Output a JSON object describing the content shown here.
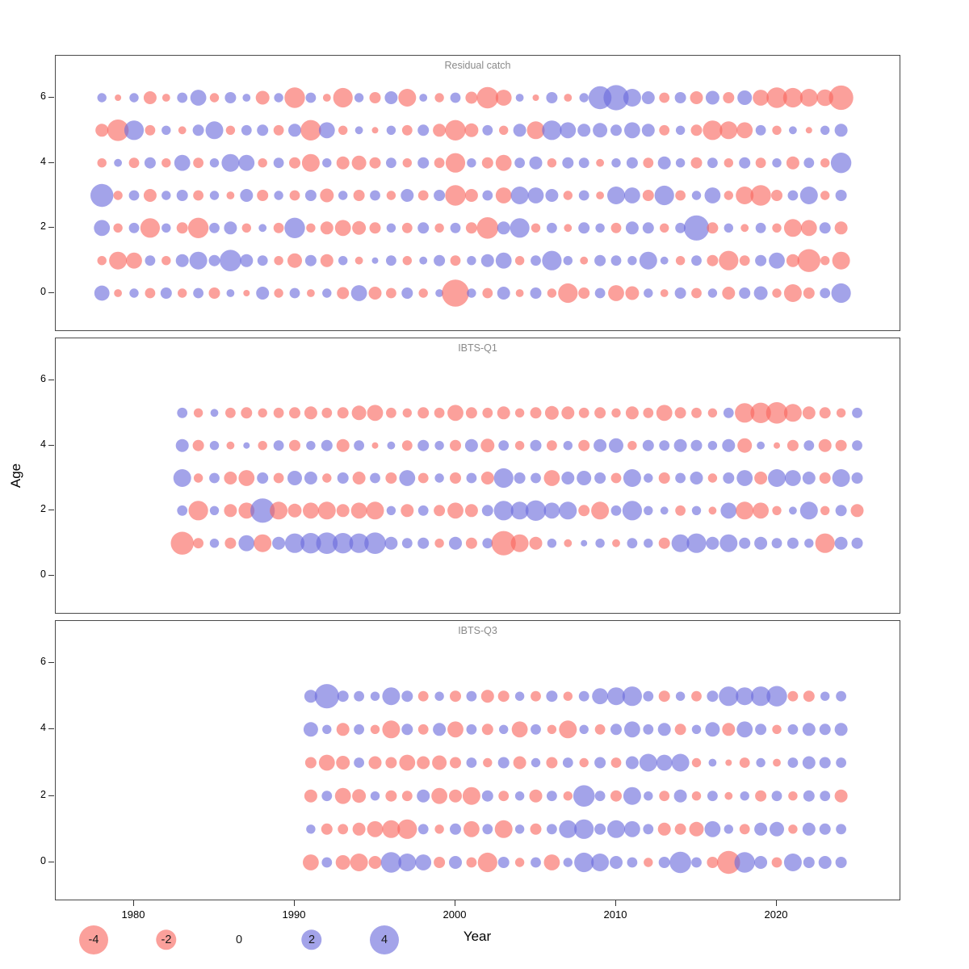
{
  "figure": {
    "ylabel": "Age",
    "xlabel": "Year",
    "x_ticks": [
      1980,
      1990,
      2000,
      2010,
      2020
    ],
    "y_ticks": [
      0,
      2,
      4,
      6
    ],
    "legend": [
      {
        "value": -4,
        "label": "-4"
      },
      {
        "value": -2,
        "label": "-2"
      },
      {
        "value": 0,
        "label": "0"
      },
      {
        "value": 2,
        "label": "2"
      },
      {
        "value": 4,
        "label": "4"
      }
    ],
    "colors": {
      "negative": "#F9655E",
      "positive": "#6A6ADC"
    }
  },
  "chart_data": [
    {
      "type": "bubble",
      "title": "Residual catch",
      "year_start": 1978,
      "year_end": 2024,
      "ages": [
        0,
        1,
        2,
        3,
        4,
        5,
        6
      ],
      "value_note": "sign gives color (negative=red, positive=blue); |value| gives bubble area",
      "series": [
        {
          "age": 0,
          "values": [
            1.1,
            -0.3,
            0.4,
            -0.5,
            0.6,
            -0.4,
            0.5,
            -0.6,
            0.3,
            -0.2,
            0.8,
            -0.4,
            0.5,
            -0.3,
            0.4,
            -0.7,
            1.2,
            -0.8,
            -0.5,
            0.6,
            -0.4,
            0.3,
            -3.5,
            0.4,
            -0.5,
            0.8,
            -0.3,
            0.6,
            -0.4,
            -1.8,
            -0.6,
            0.5,
            -1.2,
            -0.9,
            0.4,
            -0.3,
            0.6,
            -0.5,
            0.4,
            -0.8,
            0.6,
            0.9,
            -0.4,
            -1.5,
            -0.6,
            0.5,
            1.8
          ]
        },
        {
          "age": 1,
          "values": [
            -0.4,
            -1.5,
            -1.2,
            0.5,
            -0.4,
            0.8,
            1.5,
            0.6,
            2.2,
            0.8,
            0.5,
            -0.4,
            -1.0,
            0.6,
            -0.8,
            0.4,
            -0.3,
            0.2,
            0.5,
            -0.4,
            0.3,
            0.6,
            -0.5,
            0.4,
            0.8,
            1.2,
            -0.4,
            0.5,
            1.8,
            0.4,
            -0.3,
            0.6,
            0.5,
            0.4,
            1.5,
            0.3,
            -0.4,
            0.5,
            -0.6,
            -1.8,
            -0.5,
            0.6,
            1.2,
            -0.8,
            -2.5,
            -0.4,
            -1.5
          ]
        },
        {
          "age": 2,
          "values": [
            1.2,
            -0.4,
            0.5,
            -1.8,
            0.4,
            -0.6,
            -2.0,
            0.5,
            0.8,
            -0.4,
            0.3,
            -0.5,
            2.0,
            -0.4,
            -0.8,
            -1.2,
            -0.9,
            -0.6,
            0.4,
            -0.5,
            0.6,
            -0.4,
            0.5,
            -0.6,
            -2.2,
            0.8,
            1.8,
            -0.4,
            0.5,
            -0.3,
            0.6,
            0.4,
            -0.5,
            0.8,
            0.6,
            -0.4,
            0.5,
            3.0,
            -0.6,
            0.4,
            -0.3,
            0.5,
            -0.4,
            -1.5,
            -1.2,
            0.6,
            -0.8
          ]
        },
        {
          "age": 3,
          "values": [
            2.5,
            -0.4,
            0.5,
            -0.8,
            0.4,
            0.6,
            -0.5,
            0.4,
            -0.3,
            0.8,
            -0.6,
            0.4,
            -0.5,
            0.6,
            -0.9,
            0.4,
            -0.6,
            0.5,
            -0.4,
            0.8,
            -0.5,
            0.6,
            -2.0,
            -0.8,
            0.5,
            -1.2,
            1.5,
            1.2,
            0.8,
            -0.4,
            0.5,
            -0.3,
            1.5,
            1.2,
            -0.6,
            1.8,
            -0.5,
            0.4,
            1.2,
            -0.4,
            -1.5,
            -2.0,
            -0.6,
            0.5,
            1.5,
            -0.4,
            0.6
          ]
        },
        {
          "age": 4,
          "values": [
            -0.4,
            0.3,
            -0.5,
            0.6,
            -0.4,
            1.2,
            -0.5,
            0.4,
            1.5,
            1.2,
            -0.4,
            0.5,
            -0.6,
            -1.5,
            0.4,
            -0.8,
            -1.0,
            -0.6,
            0.5,
            -0.4,
            0.6,
            -0.5,
            -1.8,
            0.4,
            -0.6,
            -1.2,
            0.5,
            0.8,
            -0.4,
            0.6,
            0.5,
            -0.3,
            0.4,
            0.6,
            -0.5,
            0.8,
            0.4,
            -0.6,
            0.5,
            -0.4,
            0.6,
            -0.5,
            0.4,
            -0.8,
            0.5,
            -0.4,
            2.0
          ]
        },
        {
          "age": 5,
          "values": [
            -0.8,
            -2.2,
            1.8,
            -0.5,
            0.4,
            -0.3,
            0.6,
            1.5,
            -0.4,
            0.5,
            0.6,
            -0.5,
            0.8,
            -2.0,
            1.2,
            -0.4,
            0.3,
            -0.2,
            0.4,
            -0.5,
            0.6,
            -0.8,
            -2.0,
            -0.9,
            0.5,
            -0.4,
            0.8,
            -1.5,
            1.8,
            1.2,
            0.8,
            1.0,
            0.6,
            1.2,
            0.8,
            -0.5,
            0.4,
            -0.6,
            -1.8,
            -1.5,
            -1.2,
            0.5,
            -0.4,
            0.3,
            -0.2,
            0.4,
            0.8
          ]
        },
        {
          "age": 6,
          "values": [
            0.4,
            -0.2,
            0.4,
            -0.8,
            -0.3,
            0.5,
            1.2,
            -0.4,
            0.6,
            0.3,
            -0.9,
            0.4,
            -2.0,
            0.5,
            -0.3,
            -1.8,
            0.4,
            -0.6,
            0.8,
            -1.5,
            0.3,
            -0.4,
            0.5,
            -0.7,
            -2.2,
            -1.2,
            0.3,
            -0.2,
            0.6,
            -0.3,
            0.4,
            2.5,
            3.0,
            1.5,
            0.8,
            -0.5,
            0.6,
            -0.8,
            0.9,
            -0.6,
            1.0,
            -1.2,
            -2.0,
            -1.8,
            -1.5,
            -1.3,
            -2.8
          ]
        }
      ]
    },
    {
      "type": "bubble",
      "title": "IBTS-Q1",
      "year_start": 1983,
      "year_end": 2025,
      "ages": [
        1,
        2,
        3,
        4,
        5
      ],
      "series": [
        {
          "age": 1,
          "values": [
            -2.5,
            -0.5,
            0.4,
            -0.6,
            1.2,
            -1.5,
            0.8,
            1.8,
            2.0,
            2.2,
            2.0,
            1.8,
            2.2,
            0.8,
            0.5,
            0.6,
            -0.4,
            0.8,
            -0.6,
            0.5,
            -2.8,
            -1.5,
            -0.8,
            0.4,
            -0.3,
            0.2,
            0.4,
            -0.3,
            0.5,
            0.4,
            -0.6,
            1.5,
            1.8,
            0.8,
            1.5,
            0.6,
            0.8,
            0.5,
            0.6,
            0.4,
            -1.8,
            0.8,
            0.6
          ]
        },
        {
          "age": 2,
          "values": [
            0.5,
            -1.8,
            0.4,
            -0.8,
            -1.2,
            2.8,
            -1.5,
            -0.9,
            -1.2,
            -1.5,
            -0.8,
            -1.2,
            -1.5,
            0.4,
            -0.8,
            0.5,
            -0.6,
            -1.2,
            -0.8,
            0.6,
            1.8,
            1.5,
            2.0,
            1.2,
            1.5,
            -0.6,
            -1.5,
            0.5,
            1.8,
            0.4,
            0.3,
            -0.5,
            0.4,
            -0.3,
            1.2,
            -1.5,
            -1.2,
            -0.4,
            0.3,
            1.5,
            -0.4,
            0.6,
            -0.8
          ]
        },
        {
          "age": 3,
          "values": [
            1.5,
            -0.4,
            0.5,
            -0.8,
            -1.2,
            0.6,
            -0.5,
            1.0,
            0.8,
            -0.4,
            0.6,
            -0.8,
            0.5,
            -0.6,
            1.2,
            -0.5,
            0.4,
            -0.6,
            0.5,
            -0.8,
            1.8,
            0.6,
            0.5,
            -1.2,
            0.8,
            1.0,
            0.6,
            -0.5,
            1.5,
            0.4,
            -0.6,
            0.5,
            0.8,
            -0.4,
            0.6,
            1.2,
            -0.8,
            1.5,
            1.2,
            0.8,
            -0.6,
            1.5,
            0.6
          ]
        },
        {
          "age": 4,
          "values": [
            0.8,
            -0.6,
            0.4,
            -0.3,
            0.2,
            -0.4,
            0.5,
            -0.6,
            0.4,
            0.6,
            -0.8,
            0.5,
            -0.2,
            0.3,
            -0.5,
            0.6,
            0.4,
            -0.6,
            0.8,
            -0.9,
            0.5,
            -0.4,
            0.6,
            -0.5,
            0.4,
            -0.6,
            0.8,
            1.0,
            -0.4,
            0.6,
            0.5,
            0.8,
            0.6,
            0.4,
            0.8,
            -1.0,
            0.3,
            -0.2,
            -0.6,
            0.5,
            -0.8,
            -0.6,
            0.5
          ]
        },
        {
          "age": 5,
          "values": [
            0.5,
            -0.4,
            0.3,
            -0.5,
            -0.6,
            -0.4,
            -0.5,
            -0.6,
            -0.8,
            -0.5,
            -0.6,
            -1.0,
            -1.2,
            -0.5,
            -0.4,
            -0.6,
            -0.5,
            -1.2,
            -0.6,
            -0.5,
            -0.8,
            -0.4,
            -0.6,
            -0.9,
            -0.8,
            -0.5,
            -0.6,
            -0.4,
            -0.8,
            -0.5,
            -1.2,
            -0.6,
            -0.5,
            -0.4,
            0.5,
            -1.8,
            -2.0,
            -2.2,
            -1.5,
            -0.8,
            -0.6,
            -0.4,
            0.5
          ]
        }
      ]
    },
    {
      "type": "bubble",
      "title": "IBTS-Q3",
      "year_start": 1991,
      "year_end": 2024,
      "ages": [
        0,
        1,
        2,
        3,
        4,
        5
      ],
      "series": [
        {
          "age": 0,
          "values": [
            -1.2,
            0.5,
            -1.0,
            -1.5,
            -0.8,
            2.0,
            1.5,
            1.2,
            -0.6,
            0.8,
            -0.5,
            -1.8,
            0.6,
            -0.4,
            0.5,
            -1.2,
            0.4,
            1.8,
            1.5,
            0.8,
            0.5,
            -0.4,
            0.6,
            2.2,
            0.5,
            -0.6,
            -2.5,
            2.0,
            0.8,
            -0.5,
            1.5,
            0.6,
            0.8,
            0.6
          ]
        },
        {
          "age": 1,
          "values": [
            0.4,
            -0.6,
            -0.5,
            -0.8,
            -1.2,
            -1.5,
            -1.8,
            0.5,
            -0.4,
            0.6,
            -1.2,
            0.5,
            -1.5,
            0.4,
            -0.6,
            0.5,
            1.5,
            1.8,
            0.6,
            1.5,
            1.2,
            0.5,
            -0.8,
            -0.6,
            -1.0,
            1.2,
            0.4,
            -0.5,
            0.8,
            1.0,
            -0.4,
            0.8,
            0.6,
            0.5
          ]
        },
        {
          "age": 2,
          "values": [
            -0.8,
            0.5,
            -1.2,
            -0.9,
            0.4,
            -0.6,
            -0.5,
            0.8,
            -1.2,
            -0.8,
            -1.5,
            0.6,
            -0.5,
            0.4,
            -0.8,
            0.5,
            -0.4,
            2.2,
            0.5,
            -0.6,
            1.5,
            0.4,
            -0.5,
            0.8,
            -0.4,
            0.5,
            -0.3,
            0.4,
            -0.6,
            0.5,
            -0.4,
            0.6,
            0.5,
            -0.8
          ]
        },
        {
          "age": 3,
          "values": [
            -0.6,
            -1.2,
            -0.9,
            0.5,
            -0.8,
            -0.6,
            -1.2,
            -0.8,
            -1.0,
            -0.6,
            0.5,
            -0.4,
            0.6,
            -0.8,
            0.4,
            -0.6,
            0.5,
            -0.4,
            0.6,
            -0.5,
            0.8,
            1.5,
            1.2,
            1.5,
            -0.4,
            0.3,
            -0.2,
            -0.5,
            0.4,
            -0.3,
            0.5,
            0.8,
            0.6,
            0.5
          ]
        },
        {
          "age": 4,
          "values": [
            1.0,
            0.4,
            -0.8,
            0.5,
            -0.4,
            -1.5,
            0.6,
            -0.5,
            0.8,
            -1.2,
            0.5,
            -0.6,
            0.4,
            -1.2,
            0.5,
            -0.4,
            -1.5,
            0.4,
            -0.5,
            0.6,
            1.2,
            0.5,
            0.8,
            -0.6,
            0.4,
            1.0,
            -0.8,
            1.2,
            0.6,
            -0.4,
            0.5,
            0.8,
            0.6,
            0.8
          ]
        },
        {
          "age": 5,
          "values": [
            0.8,
            2.8,
            0.6,
            0.5,
            0.4,
            1.5,
            0.6,
            -0.5,
            0.4,
            -0.6,
            0.5,
            -0.8,
            -0.6,
            0.4,
            -0.5,
            0.6,
            -0.4,
            0.5,
            1.2,
            1.5,
            1.8,
            0.5,
            -0.6,
            0.4,
            -0.5,
            0.6,
            1.8,
            1.5,
            1.8,
            2.0,
            -0.5,
            -0.6,
            0.4,
            0.5
          ]
        }
      ]
    }
  ]
}
